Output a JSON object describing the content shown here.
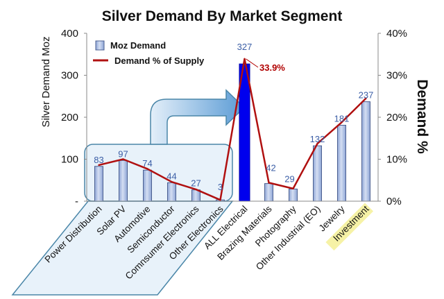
{
  "chart_data": {
    "type": "bar",
    "title": "Silver Demand By Market Segment",
    "ylabel": "Silver Demand Moz",
    "y2label": "Demand %",
    "ylim": [
      0,
      400
    ],
    "y2lim": [
      0,
      40
    ],
    "yticks": [
      "-",
      "100",
      "200",
      "300",
      "400"
    ],
    "y2ticks": [
      "0%",
      "10%",
      "20%",
      "30%",
      "40%"
    ],
    "grid": false,
    "legend_position": "top-left",
    "categories": [
      "Power Distribution",
      "Solar PV",
      "Automotive",
      "Semiconductor",
      "Comnsumer Electronics",
      "Other Electronics",
      "ALL Electrical",
      "Brazing Materials",
      "Photography",
      "Other Industrial (EO)",
      "Jewelry",
      "Investment"
    ],
    "series": [
      {
        "name": "Moz Demand",
        "type": "bar",
        "axis": "left",
        "values": [
          83,
          97,
          74,
          44,
          27,
          3,
          327,
          42,
          29,
          132,
          181,
          237
        ],
        "labels": [
          "83",
          "97",
          "74",
          "44",
          "27",
          "3",
          "327",
          "42",
          "29",
          "132",
          "181",
          "237"
        ],
        "color": "#a9bce2",
        "highlight_color": "#0000ee"
      },
      {
        "name": "Demand % of Supply",
        "type": "line",
        "axis": "right",
        "values": [
          8.6,
          10.0,
          7.7,
          4.6,
          2.8,
          0.3,
          33.9,
          4.4,
          3.0,
          13.7,
          18.8,
          24.5
        ],
        "color": "#b01010"
      }
    ],
    "annotations": [
      {
        "category": "ALL Electrical",
        "text": "33.9%"
      }
    ],
    "highlighted_category": "ALL Electrical",
    "highlighted_label": "Investment",
    "colors": {
      "bar": "#a9bce2",
      "bar_highlight": "#0000ee",
      "line": "#b01010",
      "group_box": "#d6e8f5",
      "label_highlight": "#f6f2a6"
    }
  }
}
